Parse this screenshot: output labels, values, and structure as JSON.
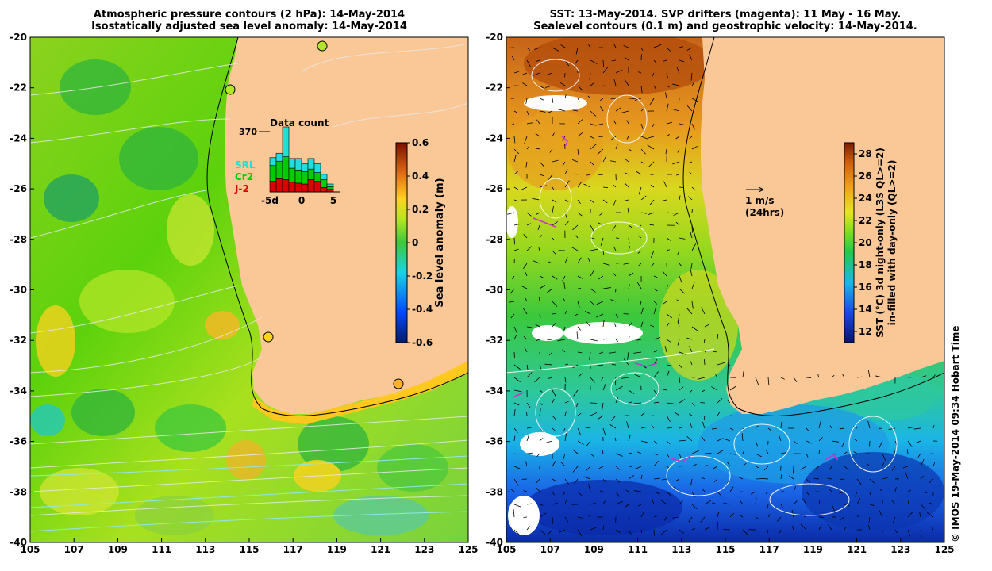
{
  "left_map": {
    "title_line1": "Atmospheric pressure contours (2 hPa): 14-May-2014",
    "title_line2": "Isostatically adjusted sea level anomaly: 14-May-2014",
    "x_ticks": [
      "105",
      "107",
      "109",
      "111",
      "113",
      "115",
      "117",
      "119",
      "121",
      "123",
      "125"
    ],
    "y_ticks": [
      "-20",
      "-22",
      "-24",
      "-26",
      "-28",
      "-30",
      "-32",
      "-34",
      "-36",
      "-38",
      "-40"
    ],
    "colorbar": {
      "label": "Sea level anomaly (m)",
      "ticks": [
        "0.6",
        "0.4",
        "0.2",
        "0",
        "-0.2",
        "-0.4",
        "-0.6"
      ],
      "range": [
        -0.6,
        0.6
      ]
    },
    "inset": {
      "title": "Data count",
      "max_label": "370",
      "x_ticks": [
        "-5d",
        "0",
        "5"
      ],
      "legend": [
        {
          "label": "SRL",
          "color": "#22dddd"
        },
        {
          "label": "Cr2",
          "color": "#00cc00"
        },
        {
          "label": "J-2",
          "color": "#dd0000"
        }
      ],
      "bars": {
        "days": [
          -5,
          -4,
          -3,
          -2,
          -1,
          0,
          1,
          2,
          3,
          4
        ],
        "J2": [
          60,
          75,
          70,
          55,
          50,
          45,
          70,
          60,
          25,
          15
        ],
        "Cr2": [
          90,
          100,
          130,
          80,
          75,
          70,
          60,
          50,
          45,
          15
        ],
        "SRL": [
          45,
          45,
          170,
          55,
          65,
          45,
          60,
          50,
          30,
          15
        ]
      }
    }
  },
  "right_map": {
    "title_line1": "SST: 13-May-2014. SVP drifters (magenta): 11 May - 16 May.",
    "title_line2": "Sealevel contours (0.1 m) and geostrophic velocity: 14-May-2014.",
    "x_ticks": [
      "105",
      "107",
      "109",
      "111",
      "113",
      "115",
      "117",
      "119",
      "121",
      "123",
      "125"
    ],
    "y_ticks": [
      "-20",
      "-22",
      "-24",
      "-26",
      "-28",
      "-30",
      "-32",
      "-34",
      "-36",
      "-38",
      "-40"
    ],
    "velocity_scale": {
      "line1": "1 m/s",
      "line2": "(24hrs)"
    },
    "colorbar": {
      "label_line1": "SST (°C)  3d night-only (L3S QL>=2)",
      "label_line2": "in-filled with day-only (QL>=2)",
      "ticks": [
        "28",
        "26",
        "24",
        "22",
        "20",
        "18",
        "16",
        "14",
        "12"
      ],
      "range": [
        11,
        29
      ]
    }
  },
  "credit": "© IMOS 19-May-2014 09:34 Hobart Time",
  "colors": {
    "land": "#f9c896",
    "sst_warm": "#b04a0a",
    "sst_cool": "#0b36b0",
    "sla_neutral": "#5cd20c",
    "drifter": "#cc33cc"
  }
}
